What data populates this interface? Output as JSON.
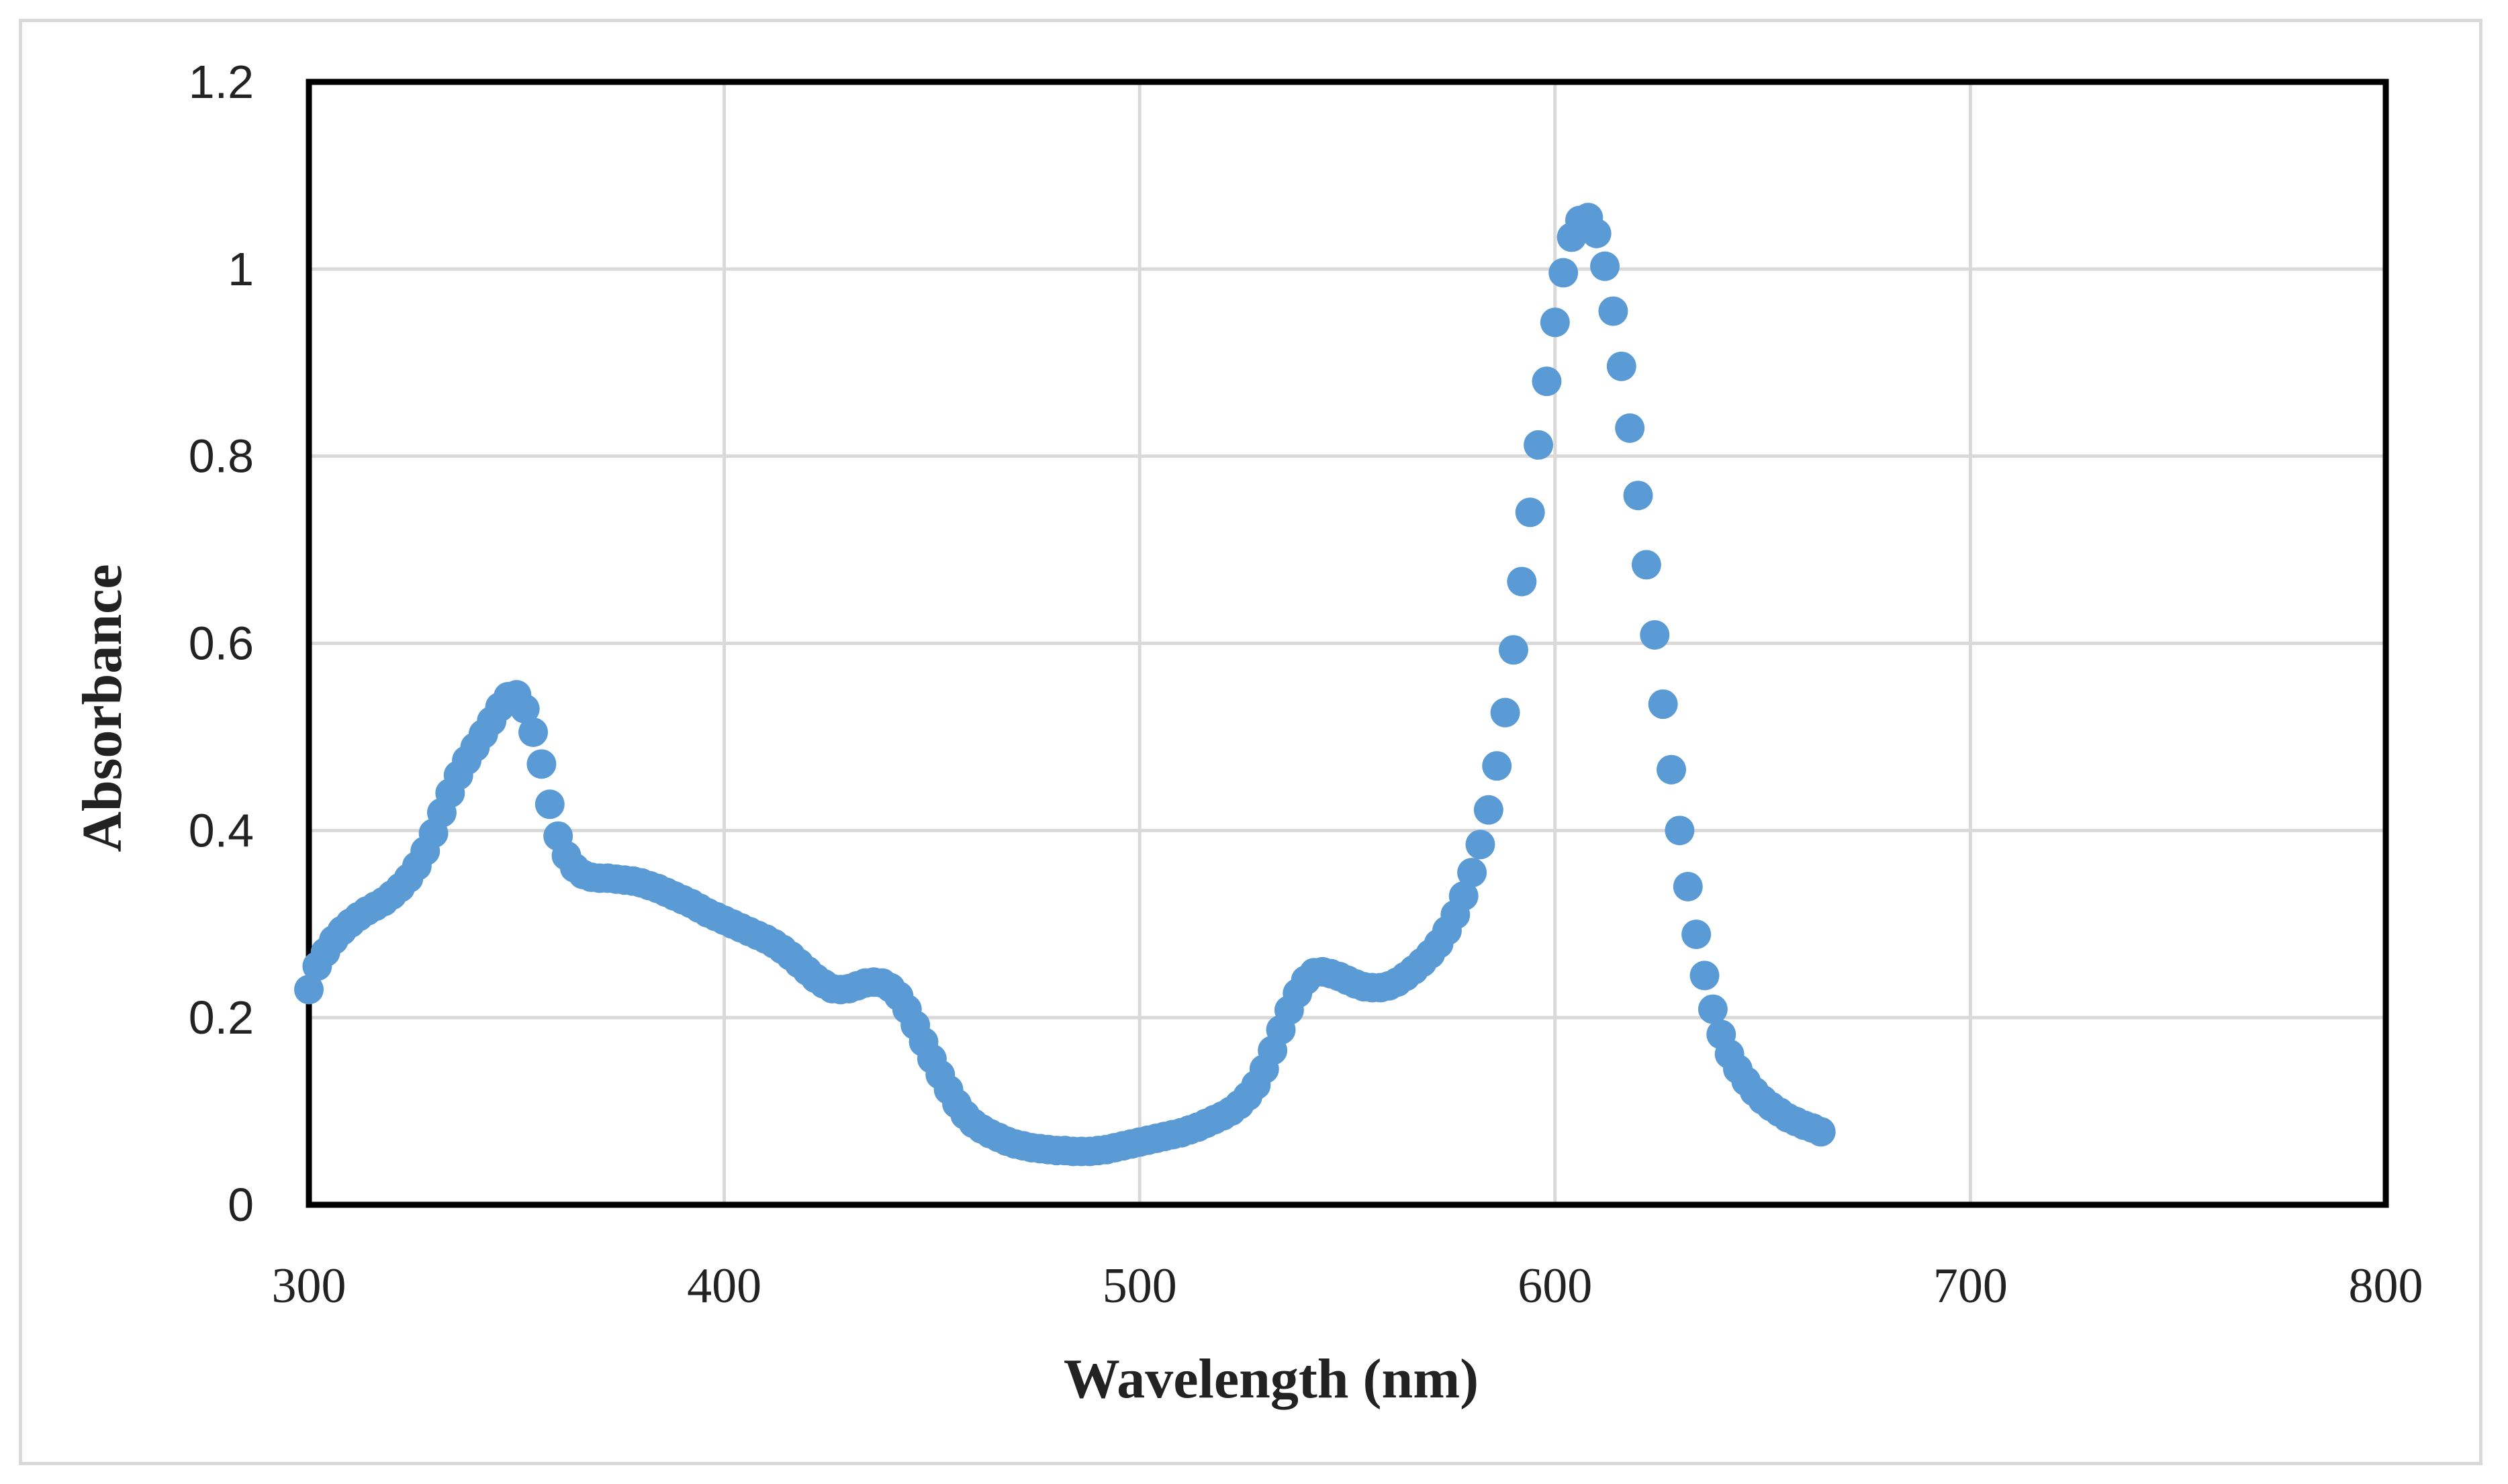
{
  "chart_data": {
    "type": "scatter",
    "title": "",
    "xlabel": "Wavelength (nm)",
    "ylabel": "Absorbance",
    "xlim": [
      300,
      800
    ],
    "ylim": [
      0,
      1.2
    ],
    "xticks": [
      300,
      400,
      500,
      600,
      700,
      800
    ],
    "xtick_labels": [
      "300",
      "400",
      "500",
      "600",
      "700",
      "800"
    ],
    "yticks": [
      0,
      0.2,
      0.4,
      0.6,
      0.8,
      1.0,
      1.2
    ],
    "ytick_labels": [
      "0",
      "0.2",
      "0.4",
      "0.6",
      "0.8",
      "1",
      "1.2"
    ],
    "grid": true,
    "legend": "none",
    "series": [
      {
        "name": "Absorbance",
        "color": "#5b9bd5",
        "x_start": 300,
        "x_step": 2,
        "values": [
          0.23,
          0.255,
          0.27,
          0.283,
          0.293,
          0.301,
          0.308,
          0.314,
          0.319,
          0.324,
          0.331,
          0.339,
          0.349,
          0.362,
          0.378,
          0.397,
          0.419,
          0.44,
          0.459,
          0.475,
          0.489,
          0.503,
          0.517,
          0.532,
          0.543,
          0.545,
          0.53,
          0.505,
          0.471,
          0.428,
          0.394,
          0.373,
          0.36,
          0.353,
          0.35,
          0.349,
          0.349,
          0.348,
          0.347,
          0.346,
          0.344,
          0.341,
          0.338,
          0.334,
          0.33,
          0.326,
          0.322,
          0.317,
          0.312,
          0.308,
          0.304,
          0.3,
          0.296,
          0.292,
          0.288,
          0.284,
          0.279,
          0.273,
          0.266,
          0.258,
          0.25,
          0.242,
          0.236,
          0.231,
          0.23,
          0.231,
          0.234,
          0.237,
          0.238,
          0.237,
          0.232,
          0.223,
          0.209,
          0.192,
          0.174,
          0.156,
          0.139,
          0.123,
          0.108,
          0.096,
          0.087,
          0.081,
          0.076,
          0.072,
          0.068,
          0.065,
          0.063,
          0.061,
          0.06,
          0.059,
          0.058,
          0.058,
          0.057,
          0.057,
          0.057,
          0.058,
          0.059,
          0.061,
          0.063,
          0.065,
          0.067,
          0.069,
          0.071,
          0.073,
          0.075,
          0.077,
          0.08,
          0.083,
          0.087,
          0.091,
          0.095,
          0.1,
          0.107,
          0.116,
          0.128,
          0.145,
          0.165,
          0.187,
          0.208,
          0.226,
          0.24,
          0.248,
          0.249,
          0.247,
          0.244,
          0.24,
          0.236,
          0.233,
          0.232,
          0.232,
          0.234,
          0.238,
          0.244,
          0.251,
          0.259,
          0.268,
          0.279,
          0.293,
          0.31,
          0.33,
          0.355,
          0.385,
          0.422,
          0.469,
          0.526,
          0.593,
          0.666,
          0.74,
          0.812,
          0.88,
          0.943,
          0.996,
          1.034,
          1.052,
          1.055,
          1.038,
          1.003,
          0.955,
          0.896,
          0.83,
          0.758,
          0.684,
          0.609,
          0.535,
          0.465,
          0.4,
          0.34,
          0.289,
          0.245,
          0.209,
          0.182,
          0.161,
          0.145,
          0.132,
          0.121,
          0.112,
          0.105,
          0.099,
          0.093,
          0.089,
          0.085,
          0.082,
          0.078
        ]
      }
    ]
  }
}
